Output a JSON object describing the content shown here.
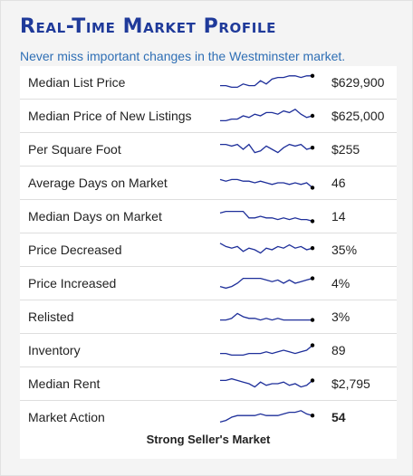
{
  "header": {
    "title": "Real-Time Market Profile",
    "subtitle": "Never miss important changes in the Westminster market."
  },
  "colors": {
    "title": "#1f3a9a",
    "subtitle": "#2f6fb5",
    "sparkline": "#1e2f9a"
  },
  "rows": [
    {
      "label": "Median List Price",
      "value": "$629,900",
      "trend": [
        3,
        3,
        2,
        2,
        4,
        3,
        3,
        6,
        4,
        7,
        8,
        8,
        9,
        9,
        8,
        9,
        9
      ]
    },
    {
      "label": "Median Price of New Listings",
      "value": "$625,000",
      "trend": [
        2,
        2,
        3,
        3,
        5,
        4,
        6,
        5,
        7,
        7,
        6,
        8,
        7,
        9,
        6,
        4,
        5
      ]
    },
    {
      "label": "Per Square Foot",
      "value": "$255",
      "trend": [
        8,
        8,
        7,
        8,
        5,
        8,
        3,
        4,
        7,
        5,
        3,
        6,
        8,
        7,
        8,
        5,
        6
      ]
    },
    {
      "label": "Average Days on Market",
      "value": "46",
      "trend": [
        7,
        6,
        7,
        7,
        6,
        6,
        5,
        6,
        5,
        4,
        5,
        5,
        4,
        5,
        4,
        5,
        2
      ]
    },
    {
      "label": "Median Days on Market",
      "value": "14",
      "trend": [
        7,
        8,
        8,
        8,
        8,
        4,
        4,
        5,
        4,
        4,
        3,
        4,
        3,
        4,
        3,
        3,
        2
      ]
    },
    {
      "label": "Price Decreased",
      "value": "35%",
      "trend": [
        9,
        7,
        6,
        7,
        4,
        6,
        5,
        3,
        6,
        5,
        7,
        6,
        8,
        6,
        7,
        5,
        6
      ]
    },
    {
      "label": "Price Increased",
      "value": "4%",
      "trend": [
        3,
        2,
        3,
        5,
        8,
        8,
        8,
        8,
        7,
        6,
        7,
        5,
        7,
        5,
        6,
        7,
        8
      ]
    },
    {
      "label": "Relisted",
      "value": "3%",
      "trend": [
        3,
        3,
        4,
        7,
        5,
        4,
        4,
        3,
        4,
        3,
        4,
        3,
        3,
        3,
        3,
        3,
        3
      ]
    },
    {
      "label": "Inventory",
      "value": "89",
      "trend": [
        3,
        3,
        2,
        2,
        2,
        3,
        3,
        3,
        4,
        3,
        4,
        5,
        4,
        3,
        4,
        5,
        8
      ]
    },
    {
      "label": "Median Rent",
      "value": "$2,795",
      "trend": [
        7,
        7,
        8,
        7,
        6,
        5,
        3,
        6,
        4,
        5,
        5,
        6,
        4,
        5,
        3,
        4,
        7
      ]
    },
    {
      "label": "Market Action",
      "value": "54",
      "bold": true,
      "trend": [
        2,
        3,
        5,
        6,
        6,
        6,
        6,
        7,
        6,
        6,
        6,
        7,
        8,
        8,
        9,
        7,
        6
      ]
    }
  ],
  "summary": "Strong Seller's Market"
}
